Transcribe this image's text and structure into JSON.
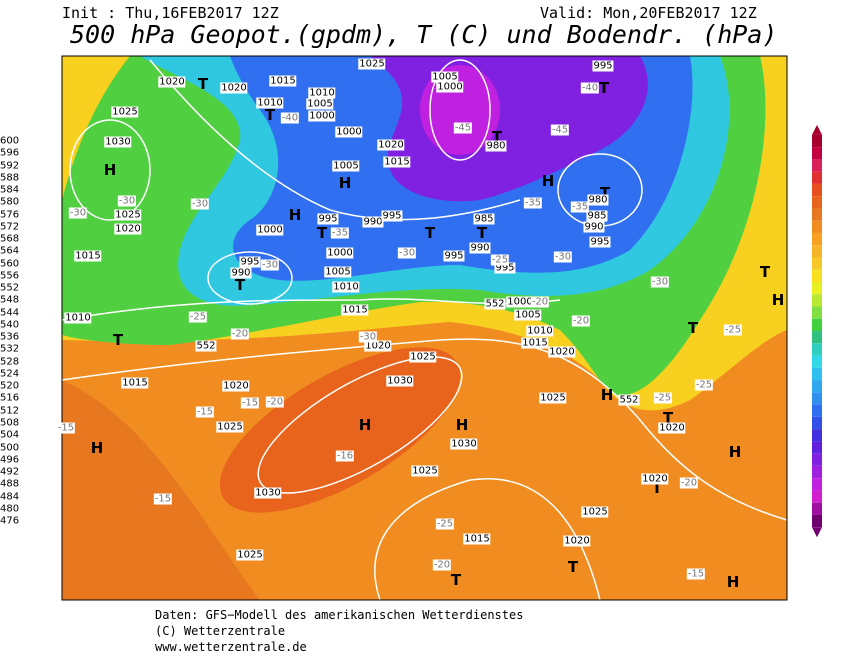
{
  "header": {
    "init": "Init : Thu,16FEB2017 12Z",
    "valid": "Valid: Mon,20FEB2017 12Z",
    "title": "500 hPa Geopot.(gpdm), T (C) und Bodendr. (hPa)"
  },
  "colorbar": {
    "levels": [
      600,
      596,
      592,
      588,
      584,
      580,
      576,
      572,
      568,
      564,
      560,
      556,
      552,
      548,
      544,
      540,
      536,
      532,
      528,
      524,
      520,
      516,
      512,
      508,
      504,
      500,
      496,
      492,
      488,
      484,
      480,
      476
    ],
    "colors": [
      "#a8002e",
      "#c40040",
      "#d8205a",
      "#e03030",
      "#e85020",
      "#e8641c",
      "#e87820",
      "#f08c20",
      "#f8a020",
      "#f8b428",
      "#f8c828",
      "#f8e020",
      "#e8f020",
      "#b8e830",
      "#80e040",
      "#40d040",
      "#30c080",
      "#30d0c0",
      "#30d8e8",
      "#30c0f0",
      "#30a8f0",
      "#3090f0",
      "#3070f0",
      "#3050e8",
      "#4030e0",
      "#6020e0",
      "#8020e0",
      "#a020e0",
      "#c020e0",
      "#d020d0",
      "#a010a0",
      "#700070"
    ]
  },
  "map": {
    "pressure_centers": [
      "H",
      "H",
      "H",
      "H",
      "H",
      "H",
      "H",
      "H",
      "H",
      "H",
      "H",
      "T",
      "T",
      "T",
      "T",
      "T",
      "T",
      "T",
      "T",
      "T",
      "T",
      "T",
      "T",
      "T",
      "T",
      "T",
      "T"
    ],
    "isobar_labels": [
      1025,
      1020,
      1020,
      1015,
      1010,
      1010,
      1005,
      1000,
      1005,
      1000,
      995,
      1025,
      1030,
      1025,
      1020,
      1015,
      1000,
      1020,
      1015,
      1005,
      995,
      990,
      995,
      1000,
      995,
      990,
      1000,
      1005,
      1010,
      1015,
      985,
      990,
      995,
      995,
      980,
      990,
      985,
      995,
      980,
      1000,
      1005,
      1010,
      1015,
      1020,
      1010,
      1020,
      1025,
      1030,
      1015,
      1020,
      1025,
      1030,
      1025,
      1030,
      1025,
      1020,
      1015,
      1025,
      1025,
      1020,
      1020,
      552,
      552,
      552
    ],
    "temperature_labels": [
      -30,
      -30,
      -30,
      -30,
      -35,
      -30,
      -25,
      -30,
      -30,
      -35,
      -35,
      -40,
      -45,
      -45,
      -40,
      -25,
      -20,
      -30,
      -20,
      -20,
      -25,
      -15,
      -20,
      -15,
      -15,
      -16,
      -15,
      -25,
      -20,
      -20,
      -15,
      -25,
      -25
    ]
  },
  "footer": {
    "lines": [
      "Daten: GFS−Modell des amerikanischen Wetterdienstes",
      "(C) Wetterzentrale",
      "www.wetterzentrale.de"
    ]
  }
}
